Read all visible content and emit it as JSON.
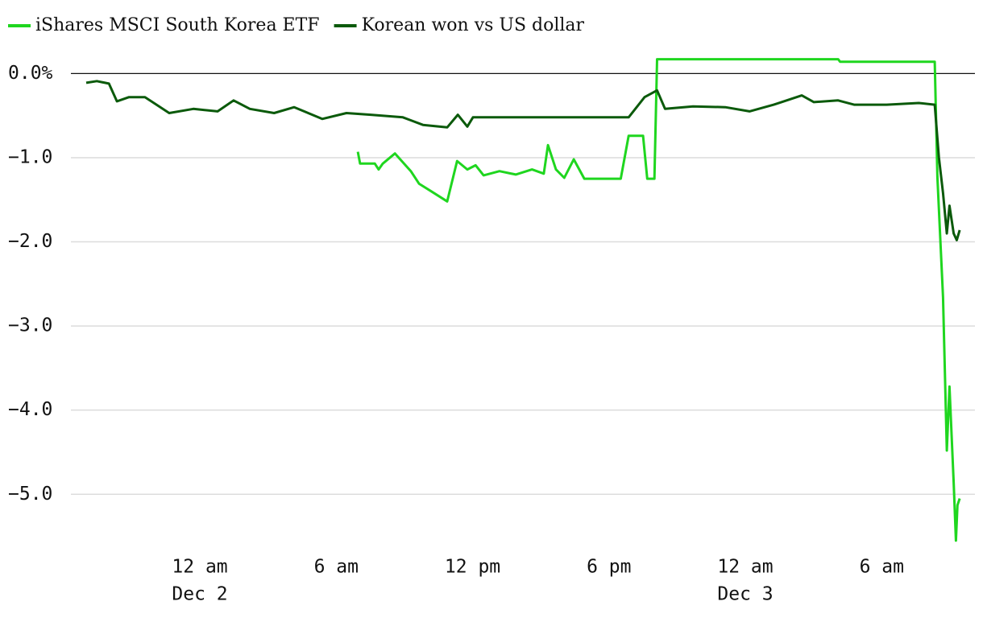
{
  "chart_data": {
    "type": "line",
    "series": [
      {
        "name": "iShares MSCI South Korea ETF",
        "color": "#1fd61f",
        "x": [
          "Dec 2 06:57",
          "Dec 2 07:03",
          "Dec 2 07:42",
          "Dec 2 07:52",
          "Dec 2 08:03",
          "Dec 2 08:35",
          "Dec 2 09:17",
          "Dec 2 09:39",
          "Dec 2 10:11",
          "Dec 2 10:53",
          "Dec 2 11:19",
          "Dec 2 11:46",
          "Dec 2 12:08",
          "Dec 2 12:29",
          "Dec 2 13:11",
          "Dec 2 13:54",
          "Dec 2 14:37",
          "Dec 2 15:08",
          "Dec 2 15:19",
          "Dec 2 15:40",
          "Dec 2 16:02",
          "Dec 2 16:27",
          "Dec 2 16:55",
          "Dec 2 18:31",
          "Dec 2 18:52",
          "Dec 2 19:30",
          "Dec 2 19:41",
          "Dec 2 20:00",
          "Dec 2 20:07",
          "Dec 3 04:05",
          "Dec 3 04:10",
          "Dec 3 08:20",
          "Dec 3 08:27",
          "Dec 3 08:42",
          "Dec 3 08:52",
          "Dec 3 08:59",
          "Dec 3 09:10",
          "Dec 3 09:16",
          "Dec 3 09:20",
          "Dec 3 09:26"
        ],
        "values": [
          -0.93,
          -1.07,
          -1.07,
          -1.14,
          -1.07,
          -0.95,
          -1.16,
          -1.31,
          -1.4,
          -1.52,
          -1.04,
          -1.14,
          -1.09,
          -1.21,
          -1.16,
          -1.2,
          -1.14,
          -1.19,
          -0.85,
          -1.14,
          -1.24,
          -1.02,
          -1.25,
          -1.25,
          -0.74,
          -0.74,
          -1.25,
          -1.25,
          0.17,
          0.17,
          0.14,
          0.14,
          -1.23,
          -2.66,
          -4.48,
          -3.72,
          -4.86,
          -5.55,
          -5.13,
          -5.05
        ]
      },
      {
        "name": "Korean won vs US dollar",
        "color": "#0b5a0b",
        "x": [
          "Dec 1 19:00",
          "Dec 1 19:28",
          "Dec 1 20:00",
          "Dec 1 20:21",
          "Dec 1 20:53",
          "Dec 1 21:35",
          "Dec 1 22:39",
          "Dec 1 23:43",
          "Dec 2 00:47",
          "Dec 2 01:29",
          "Dec 2 02:12",
          "Dec 2 03:16",
          "Dec 2 04:09",
          "Dec 2 05:23",
          "Dec 2 06:27",
          "Dec 2 07:31",
          "Dec 2 08:56",
          "Dec 2 09:49",
          "Dec 2 10:53",
          "Dec 2 11:21",
          "Dec 2 11:46",
          "Dec 2 12:01",
          "Dec 2 18:52",
          "Dec 2 19:34",
          "Dec 2 20:07",
          "Dec 2 20:28",
          "Dec 2 21:42",
          "Dec 2 23:07",
          "Dec 3 00:11",
          "Dec 3 01:15",
          "Dec 3 02:29",
          "Dec 3 03:01",
          "Dec 3 04:05",
          "Dec 3 04:47",
          "Dec 3 06:13",
          "Dec 3 07:38",
          "Dec 3 08:20",
          "Dec 3 08:31",
          "Dec 3 08:42",
          "Dec 3 08:52",
          "Dec 3 08:59",
          "Dec 3 09:10",
          "Dec 3 09:18",
          "Dec 3 09:26"
        ],
        "values": [
          -0.11,
          -0.09,
          -0.12,
          -0.33,
          -0.28,
          -0.28,
          -0.47,
          -0.42,
          -0.45,
          -0.32,
          -0.42,
          -0.47,
          -0.4,
          -0.54,
          -0.47,
          -0.49,
          -0.52,
          -0.61,
          -0.64,
          -0.49,
          -0.63,
          -0.52,
          -0.52,
          -0.28,
          -0.2,
          -0.42,
          -0.39,
          -0.4,
          -0.45,
          -0.37,
          -0.26,
          -0.34,
          -0.32,
          -0.37,
          -0.37,
          -0.35,
          -0.37,
          -1.0,
          -1.42,
          -1.9,
          -1.57,
          -1.9,
          -1.98,
          -1.86
        ]
      }
    ],
    "xlim": [
      "Dec 1 19:00",
      "Dec 3 09:30"
    ],
    "xticks": [
      {
        "value": "Dec 2 00:00",
        "label": "12 am",
        "date": "Dec 2"
      },
      {
        "value": "Dec 2 06:00",
        "label": "6 am"
      },
      {
        "value": "Dec 2 12:00",
        "label": "12 pm"
      },
      {
        "value": "Dec 2 18:00",
        "label": "6 pm"
      },
      {
        "value": "Dec 3 00:00",
        "label": "12 am",
        "date": "Dec 3"
      },
      {
        "value": "Dec 3 06:00",
        "label": "6 am"
      }
    ],
    "ylim": [
      -5.6,
      0.3
    ],
    "yticks": [
      {
        "value": 0,
        "label": "0.0%"
      },
      {
        "value": -1,
        "label": "−1.0"
      },
      {
        "value": -2,
        "label": "−2.0"
      },
      {
        "value": -3,
        "label": "−3.0"
      },
      {
        "value": -4,
        "label": "−4.0"
      },
      {
        "value": -5,
        "label": "−5.0"
      }
    ],
    "grid": true
  }
}
